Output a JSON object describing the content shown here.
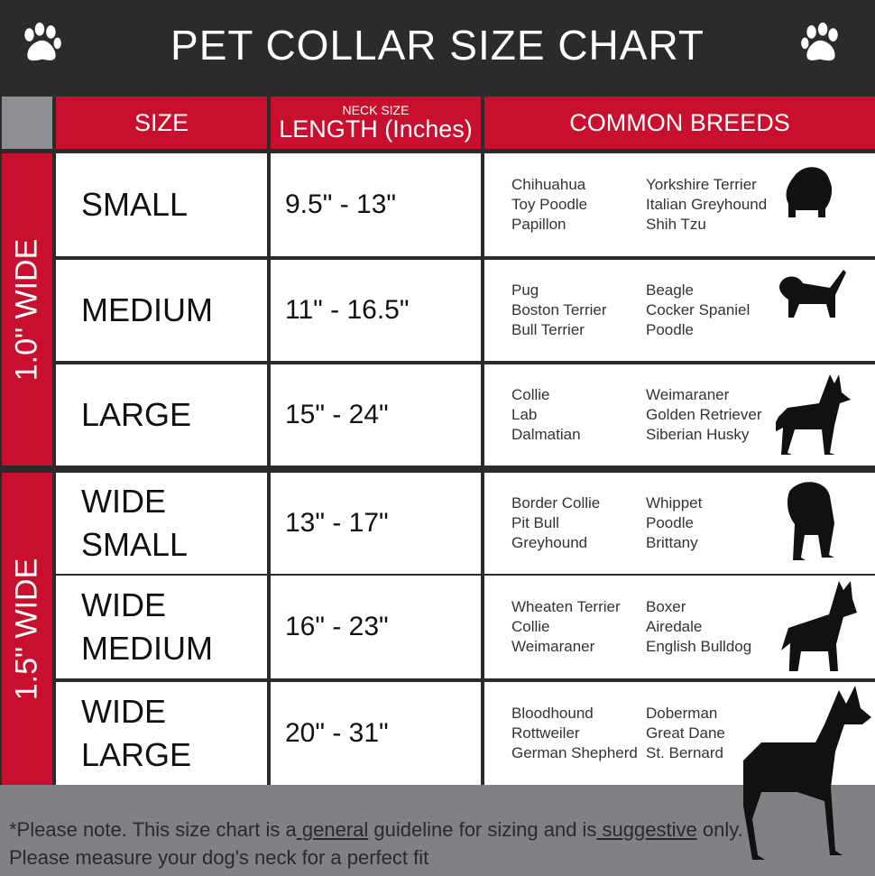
{
  "title": "PET COLLAR SIZE CHART",
  "headers": {
    "size": "SIZE",
    "neck_small": "NECK SIZE",
    "length": "LENGTH (Inches)",
    "breeds": "COMMON BREEDS"
  },
  "groups": [
    {
      "label": "1.0\" WIDE"
    },
    {
      "label": "1.5\" WIDE"
    }
  ],
  "rows": [
    {
      "size": [
        "SMALL"
      ],
      "length": "9.5\" - 13\"",
      "breeds_a": [
        "Chihuahua",
        "Toy Poodle",
        "Papillon"
      ],
      "breeds_b": [
        "Yorkshire Terrier",
        "Italian Greyhound",
        "Shih Tzu"
      ]
    },
    {
      "size": [
        "MEDIUM"
      ],
      "length": "11\" - 16.5\"",
      "breeds_a": [
        "Pug",
        "Boston Terrier",
        "Bull Terrier"
      ],
      "breeds_b": [
        "Beagle",
        "Cocker Spaniel",
        "Poodle"
      ]
    },
    {
      "size": [
        "LARGE"
      ],
      "length": "15\" - 24\"",
      "breeds_a": [
        "Collie",
        "Lab",
        "Dalmatian"
      ],
      "breeds_b": [
        "Weimaraner",
        "Golden Retriever",
        "Siberian Husky"
      ]
    },
    {
      "size": [
        "WIDE",
        "SMALL"
      ],
      "length": "13\" - 17\"",
      "breeds_a": [
        "Border Collie",
        "Pit Bull",
        "Greyhound"
      ],
      "breeds_b": [
        "Whippet",
        "Poodle",
        "Brittany"
      ]
    },
    {
      "size": [
        "WIDE",
        "MEDIUM"
      ],
      "length": "16\" - 23\"",
      "breeds_a": [
        "Wheaten Terrier",
        "Collie",
        "Weimaraner"
      ],
      "breeds_b": [
        "Boxer",
        "Airedale",
        "English Bulldog"
      ]
    },
    {
      "size": [
        "WIDE",
        "LARGE"
      ],
      "length": "20\" - 31\"",
      "breeds_a": [
        "Bloodhound",
        "Rottweiler",
        "German Shepherd"
      ],
      "breeds_b": [
        "Doberman",
        "Great Dane",
        "St. Bernard"
      ]
    }
  ],
  "footer": {
    "p1": "*Please note. This size chart is a",
    "u1": " general",
    "p2": " guideline for sizing and is",
    "u2": " suggestive",
    "p3": " only.",
    "line2": "Please measure your dog's neck for a perfect fit"
  },
  "colors": {
    "red": "#c8102e",
    "dark": "#2b2b2b",
    "grey": "#808185"
  },
  "icons": [
    "paw-icon",
    "dog-silhouette-icon"
  ]
}
